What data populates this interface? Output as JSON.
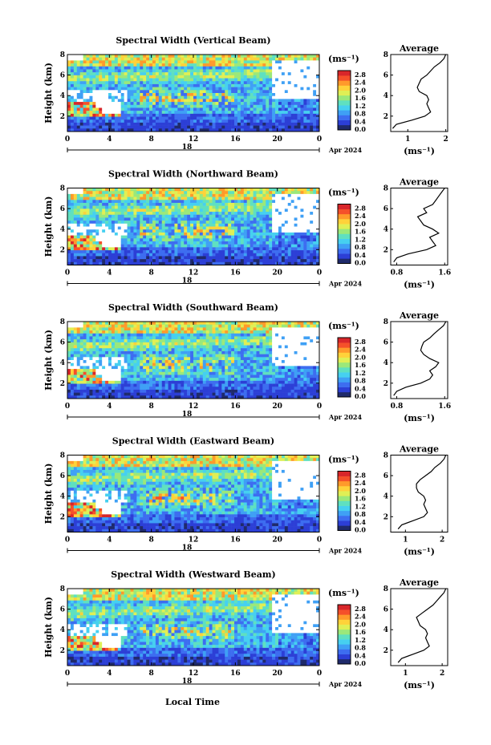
{
  "figure": {
    "xlabel": "Local Time",
    "date_day": "18",
    "date_month_year": "Apr 2024",
    "colorbar_unit": "(ms⁻¹)",
    "colorbar_ticks": [
      "0.0",
      "0.4",
      "0.8",
      "1.2",
      "1.6",
      "2.0",
      "2.4",
      "2.8"
    ],
    "colormap": [
      "#ffffff",
      "#1f2a6b",
      "#2c3fd6",
      "#3d6df0",
      "#3fa0f5",
      "#46d0f0",
      "#5fe0c0",
      "#9be87a",
      "#e0ef55",
      "#ffd23a",
      "#ff9a2b",
      "#f5502a",
      "#d8262a"
    ],
    "avg_title": "Average",
    "avg_xlabel": "(ms⁻¹)"
  },
  "chart_data": [
    {
      "type": "heatmap",
      "title": "Spectral Width (Vertical Beam)",
      "ylabel": "Height (km)",
      "x_ticks": [
        "0",
        "4",
        "8",
        "12",
        "16",
        "20",
        "0"
      ],
      "y_ticks": [
        "2",
        "4",
        "6",
        "8"
      ],
      "xlim": [
        0,
        24
      ],
      "ylim": [
        0.5,
        8
      ],
      "zlim": [
        0,
        3.0
      ],
      "profile": {
        "type": "line",
        "title": "Average",
        "xlabel": "(ms⁻¹)",
        "x_ticks": [
          "1",
          "2"
        ],
        "xlim": [
          0.55,
          2.05
        ],
        "y_ticks": [
          "2",
          "4",
          "6",
          "8"
        ],
        "ylim": [
          0.5,
          8
        ],
        "height": [
          0.8,
          1.2,
          1.6,
          2.0,
          2.4,
          2.8,
          3.2,
          3.6,
          4.0,
          4.4,
          4.8,
          5.2,
          5.6,
          6.0,
          6.4,
          6.8,
          7.2,
          7.6,
          8.0
        ],
        "width": [
          0.6,
          0.7,
          1.1,
          1.45,
          1.6,
          1.55,
          1.5,
          1.55,
          1.5,
          1.3,
          1.25,
          1.3,
          1.35,
          1.5,
          1.6,
          1.7,
          1.85,
          1.95,
          2.0
        ]
      }
    },
    {
      "type": "heatmap",
      "title": "Spectral Width (Northward Beam)",
      "ylabel": "Height (km)",
      "x_ticks": [
        "0",
        "4",
        "8",
        "12",
        "16",
        "20",
        "0"
      ],
      "y_ticks": [
        "2",
        "4",
        "6",
        "8"
      ],
      "xlim": [
        0,
        24
      ],
      "ylim": [
        0.5,
        8
      ],
      "zlim": [
        0,
        3.0
      ],
      "profile": {
        "type": "line",
        "title": "Average",
        "xlabel": "(ms⁻¹)",
        "x_ticks": [
          "0.8",
          "1.6"
        ],
        "xlim": [
          0.7,
          1.65
        ],
        "y_ticks": [
          "2",
          "4",
          "6",
          "8"
        ],
        "ylim": [
          0.5,
          8
        ],
        "height": [
          0.8,
          1.2,
          1.6,
          2.0,
          2.4,
          2.8,
          3.2,
          3.6,
          4.0,
          4.4,
          4.8,
          5.2,
          5.6,
          6.0,
          6.4,
          6.8,
          7.2,
          7.6,
          8.0
        ],
        "width": [
          0.75,
          0.8,
          1.0,
          1.3,
          1.45,
          1.4,
          1.35,
          1.5,
          1.4,
          1.25,
          1.2,
          1.15,
          1.3,
          1.25,
          1.4,
          1.45,
          1.5,
          1.55,
          1.6
        ]
      }
    },
    {
      "type": "heatmap",
      "title": "Spectral Width (Southward Beam)",
      "ylabel": "Height (km)",
      "x_ticks": [
        "0",
        "4",
        "8",
        "12",
        "16",
        "20",
        "0"
      ],
      "y_ticks": [
        "2",
        "4",
        "6",
        "8"
      ],
      "xlim": [
        0,
        24
      ],
      "ylim": [
        0.5,
        8
      ],
      "zlim": [
        0,
        3.0
      ],
      "profile": {
        "type": "line",
        "title": "Average",
        "xlabel": "(ms⁻¹)",
        "x_ticks": [
          "0.8",
          "1.6"
        ],
        "xlim": [
          0.7,
          1.65
        ],
        "y_ticks": [
          "2",
          "4",
          "6",
          "8"
        ],
        "ylim": [
          0.5,
          8
        ],
        "height": [
          0.8,
          1.2,
          1.6,
          2.0,
          2.4,
          2.8,
          3.2,
          3.6,
          4.0,
          4.4,
          4.8,
          5.2,
          5.6,
          6.0,
          6.4,
          6.8,
          7.2,
          7.6,
          8.0
        ],
        "width": [
          0.75,
          0.8,
          0.95,
          1.2,
          1.35,
          1.4,
          1.35,
          1.45,
          1.5,
          1.35,
          1.25,
          1.2,
          1.22,
          1.25,
          1.35,
          1.42,
          1.5,
          1.58,
          1.62
        ]
      }
    },
    {
      "type": "heatmap",
      "title": "Spectral Width (Eastward Beam)",
      "ylabel": "Height (km)",
      "x_ticks": [
        "0",
        "4",
        "8",
        "12",
        "16",
        "20",
        "0"
      ],
      "y_ticks": [
        "2",
        "4",
        "6",
        "8"
      ],
      "xlim": [
        0,
        24
      ],
      "ylim": [
        0.5,
        8
      ],
      "zlim": [
        0,
        3.0
      ],
      "profile": {
        "type": "line",
        "title": "Average",
        "xlabel": "(ms⁻¹)",
        "x_ticks": [
          "1",
          "2"
        ],
        "xlim": [
          0.6,
          2.15
        ],
        "y_ticks": [
          "2",
          "4",
          "6",
          "8"
        ],
        "ylim": [
          0.5,
          8
        ],
        "height": [
          0.8,
          1.2,
          1.6,
          2.0,
          2.4,
          2.8,
          3.2,
          3.6,
          4.0,
          4.4,
          4.8,
          5.2,
          5.6,
          6.0,
          6.4,
          6.8,
          7.2,
          7.6,
          8.0
        ],
        "width": [
          0.8,
          0.9,
          1.2,
          1.5,
          1.6,
          1.55,
          1.5,
          1.55,
          1.5,
          1.35,
          1.3,
          1.3,
          1.4,
          1.55,
          1.7,
          1.8,
          1.95,
          2.05,
          2.1
        ]
      }
    },
    {
      "type": "heatmap",
      "title": "Spectral Width (Westward Beam)",
      "ylabel": "Height (km)",
      "x_ticks": [
        "0",
        "4",
        "8",
        "12",
        "16",
        "20",
        "0"
      ],
      "y_ticks": [
        "2",
        "4",
        "6",
        "8"
      ],
      "xlim": [
        0,
        24
      ],
      "ylim": [
        0.5,
        8
      ],
      "zlim": [
        0,
        3.0
      ],
      "profile": {
        "type": "line",
        "title": "Average",
        "xlabel": "(ms⁻¹)",
        "x_ticks": [
          "1",
          "2"
        ],
        "xlim": [
          0.6,
          2.15
        ],
        "y_ticks": [
          "2",
          "4",
          "6",
          "8"
        ],
        "ylim": [
          0.5,
          8
        ],
        "height": [
          0.8,
          1.2,
          1.6,
          2.0,
          2.4,
          2.8,
          3.2,
          3.6,
          4.0,
          4.4,
          4.8,
          5.2,
          5.6,
          6.0,
          6.4,
          6.8,
          7.2,
          7.6,
          8.0
        ],
        "width": [
          0.8,
          0.9,
          1.2,
          1.5,
          1.65,
          1.6,
          1.55,
          1.6,
          1.55,
          1.4,
          1.35,
          1.3,
          1.45,
          1.6,
          1.75,
          1.85,
          1.95,
          2.05,
          2.1
        ]
      }
    }
  ]
}
